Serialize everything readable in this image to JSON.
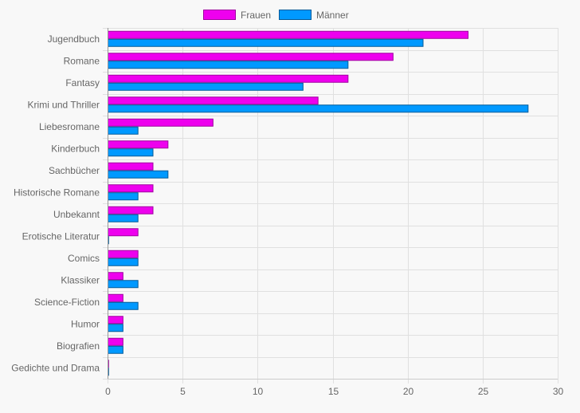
{
  "chart_data": {
    "type": "bar",
    "orientation": "horizontal",
    "categories": [
      "Jugendbuch",
      "Romane",
      "Fantasy",
      "Krimi und Thriller",
      "Liebesromane",
      "Kinderbuch",
      "Sachbücher",
      "Historische Romane",
      "Unbekannt",
      "Erotische Literatur",
      "Comics",
      "Klassiker",
      "Science-Fiction",
      "Humor",
      "Biografien",
      "Gedichte und Drama"
    ],
    "series": [
      {
        "name": "Frauen",
        "color": "#ee00ee",
        "border": "#a000a0",
        "values": [
          24,
          19,
          16,
          14,
          7,
          4,
          3,
          3,
          3,
          2,
          2,
          1,
          1,
          1,
          1,
          0
        ]
      },
      {
        "name": "Männer",
        "color": "#0099ff",
        "border": "#005a99",
        "values": [
          21,
          16,
          13,
          28,
          2,
          3,
          4,
          2,
          2,
          0,
          2,
          2,
          2,
          1,
          1,
          0
        ]
      }
    ],
    "xlim": [
      0,
      30
    ],
    "xticks": [
      0,
      5,
      10,
      15,
      20,
      25,
      30
    ],
    "grid": true,
    "legend": "top-center",
    "title": "",
    "xlabel": "",
    "ylabel": ""
  }
}
